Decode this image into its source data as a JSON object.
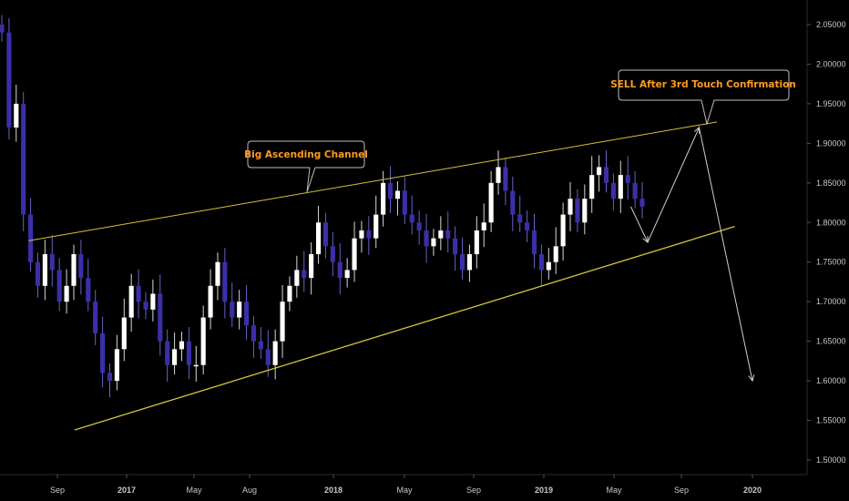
{
  "chart_data": {
    "type": "candlestick",
    "colors": {
      "background": "#000000",
      "bull_candle": "#ffffff",
      "bear_candle": "#3b2fa8",
      "trendline": "#d4c23a",
      "projection": "#cfcfcf",
      "annotation_text": "#ff9b1f",
      "axis_text": "#c8c8c8"
    },
    "ylim": [
      1.495,
      2.07
    ],
    "y_ticks": [
      "2.05000",
      "2.00000",
      "1.95000",
      "1.90000",
      "1.85000",
      "1.80000",
      "1.75000",
      "1.70000",
      "1.65000",
      "1.60000",
      "1.55000",
      "1.50000"
    ],
    "y_tick_values": [
      2.05,
      2.0,
      1.95,
      1.9,
      1.85,
      1.8,
      1.75,
      1.7,
      1.65,
      1.6,
      1.55,
      1.5
    ],
    "x_ticks": [
      {
        "label": "Sep",
        "date": "2016-09",
        "bold": false
      },
      {
        "label": "2017",
        "date": "2017-01",
        "bold": true
      },
      {
        "label": "May",
        "date": "2017-05",
        "bold": false
      },
      {
        "label": "Aug",
        "date": "2017-08",
        "bold": false
      },
      {
        "label": "2018",
        "date": "2018-01",
        "bold": true
      },
      {
        "label": "May",
        "date": "2018-05",
        "bold": false
      },
      {
        "label": "Sep",
        "date": "2018-09",
        "bold": false
      },
      {
        "label": "2019",
        "date": "2019-01",
        "bold": true
      },
      {
        "label": "May",
        "date": "2019-05",
        "bold": false
      },
      {
        "label": "Sep",
        "date": "2019-09",
        "bold": false
      },
      {
        "label": "2020",
        "date": "2020-01",
        "bold": true
      }
    ],
    "series": [
      {
        "name": "price",
        "values": [
          2.04,
          1.92,
          1.95,
          1.81,
          1.75,
          1.72,
          1.76,
          1.74,
          1.7,
          1.72,
          1.76,
          1.73,
          1.7,
          1.66,
          1.61,
          1.6,
          1.64,
          1.68,
          1.72,
          1.7,
          1.69,
          1.71,
          1.65,
          1.62,
          1.64,
          1.65,
          1.62,
          1.62,
          1.68,
          1.72,
          1.75,
          1.7,
          1.68,
          1.7,
          1.67,
          1.65,
          1.64,
          1.62,
          1.65,
          1.7,
          1.72,
          1.74,
          1.73,
          1.76,
          1.8,
          1.77,
          1.75,
          1.73,
          1.74,
          1.78,
          1.79,
          1.78,
          1.81,
          1.85,
          1.83,
          1.84,
          1.81,
          1.8,
          1.79,
          1.77,
          1.78,
          1.79,
          1.78,
          1.76,
          1.74,
          1.76,
          1.79,
          1.8,
          1.85,
          1.87,
          1.84,
          1.81,
          1.8,
          1.79,
          1.76,
          1.74,
          1.75,
          1.77,
          1.81,
          1.83,
          1.8,
          1.83,
          1.86,
          1.87,
          1.85,
          1.83,
          1.86,
          1.85,
          1.83,
          1.82
        ]
      }
    ],
    "trendlines": [
      {
        "name": "upper channel",
        "start": {
          "date": "2016-08",
          "value": 1.777
        },
        "end": {
          "date": "2019-11",
          "value": 1.927
        }
      },
      {
        "name": "lower channel",
        "start": {
          "date": "2016-10",
          "value": 1.538
        },
        "end": {
          "date": "2019-12",
          "value": 1.795
        }
      }
    ],
    "projection_path": [
      {
        "date": "2019-06",
        "value": 1.82
      },
      {
        "date": "2019-07",
        "value": 1.775
      },
      {
        "date": "2019-10",
        "value": 1.92
      },
      {
        "date": "2020-01",
        "value": 1.6
      }
    ],
    "annotations": [
      {
        "text": "Big Ascending Channel"
      },
      {
        "text": "SELL After 3rd Touch Confirmation"
      }
    ]
  }
}
